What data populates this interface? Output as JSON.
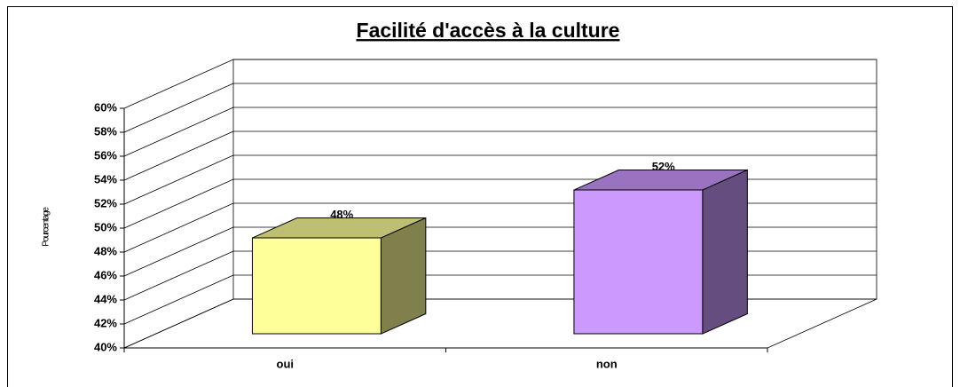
{
  "chart_data": {
    "type": "bar3d",
    "title": "Facilité d'accès à la culture",
    "y_label": "Pourcentage",
    "categories": [
      "oui",
      "non"
    ],
    "values": [
      48,
      52
    ],
    "value_labels": [
      "48%",
      "52%"
    ],
    "colors": [
      "#ffff99",
      "#cc99ff"
    ],
    "ylim": [
      40,
      60
    ],
    "yticks": [
      {
        "value": 40,
        "label": "40%"
      },
      {
        "value": 42,
        "label": "42%"
      },
      {
        "value": 44,
        "label": "44%"
      },
      {
        "value": 46,
        "label": "46%"
      },
      {
        "value": 48,
        "label": "48%"
      },
      {
        "value": 50,
        "label": "50%"
      },
      {
        "value": 52,
        "label": "52%"
      },
      {
        "value": 54,
        "label": "54%"
      },
      {
        "value": 56,
        "label": "56%"
      },
      {
        "value": 58,
        "label": "58%"
      },
      {
        "value": 60,
        "label": "60%"
      }
    ],
    "grid": true
  }
}
